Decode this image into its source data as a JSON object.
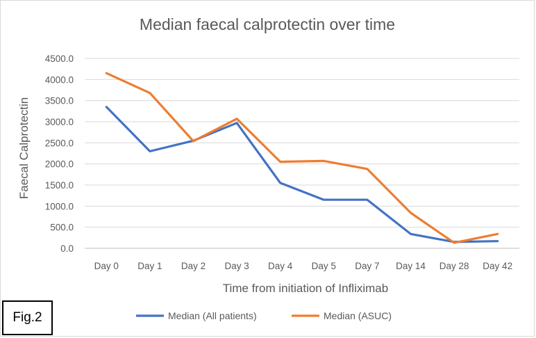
{
  "figure_label": "Fig.2",
  "chart_data": {
    "type": "line",
    "title": "Median faecal calprotectin over time",
    "xlabel": "Time from initiation of Infliximab",
    "ylabel": "Faecal Calprotectin",
    "categories": [
      "Day 0",
      "Day 1",
      "Day 2",
      "Day 3",
      "Day 4",
      "Day 5",
      "Day 7",
      "Day 14",
      "Day 28",
      "Day 42"
    ],
    "ylim": [
      0,
      4500
    ],
    "yticks": [
      "0.0",
      "500.0",
      "1000.0",
      "1500.0",
      "2000.0",
      "2500.0",
      "3000.0",
      "3500.0",
      "4000.0",
      "4500.0"
    ],
    "grid": true,
    "legend": "bottom",
    "series": [
      {
        "name": "Median (All patients)",
        "color": "#4472c4",
        "values": [
          3350,
          2300,
          2550,
          2970,
          1550,
          1150,
          1150,
          340,
          150,
          170
        ]
      },
      {
        "name": "Median (ASUC)",
        "color": "#ed7d31",
        "values": [
          4150,
          3680,
          2540,
          3070,
          2050,
          2070,
          1880,
          840,
          130,
          340
        ]
      }
    ]
  }
}
